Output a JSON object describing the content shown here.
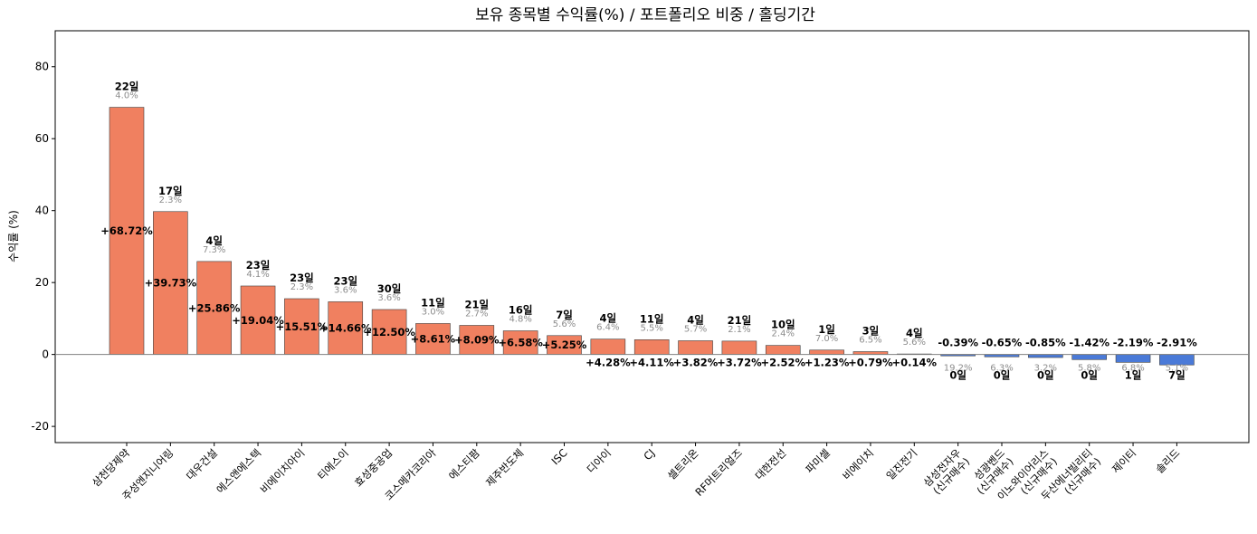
{
  "chart_data": {
    "type": "bar",
    "title": "보유 종목별 수익률(%) / 포트폴리오 비중 / 홀딩기간",
    "xlabel": "",
    "ylabel": "수익률 (%)",
    "ylim": [
      -24.5,
      90
    ],
    "yticks": [
      -20,
      0,
      20,
      40,
      60,
      80
    ],
    "ytick_labels": [
      "-20",
      "0",
      "20",
      "40",
      "60",
      "80"
    ],
    "grid": false,
    "zero_line": true,
    "colors": {
      "positive": "#f08060",
      "negative": "#4a7ad8",
      "edge": "#404040",
      "zero_line": "#808080",
      "weight_text": "#8c8c8c"
    },
    "categories": [
      [
        "삼천당제약"
      ],
      [
        "주성엔지니어링"
      ],
      [
        "대우건설"
      ],
      [
        "에스앤에스텍"
      ],
      [
        "비에이치아이"
      ],
      [
        "티에스이"
      ],
      [
        "효성중공업"
      ],
      [
        "코스메카코리아"
      ],
      [
        "에스티팜"
      ],
      [
        "제주반도체"
      ],
      [
        "ISC"
      ],
      [
        "디아이"
      ],
      [
        "CJ"
      ],
      [
        "셀트리온"
      ],
      [
        "RF머트리얼즈"
      ],
      [
        "대한전선"
      ],
      [
        "파미셀"
      ],
      [
        "비에이치"
      ],
      [
        "일진전기"
      ],
      [
        "삼성전자우",
        "(신규매수)"
      ],
      [
        "성광벤드",
        "(신규매수)"
      ],
      [
        "이노와이어리스",
        "(신규매수)"
      ],
      [
        "두산에너빌리티",
        "(신규매수)"
      ],
      [
        "제이티"
      ],
      [
        "솔리드"
      ]
    ],
    "values": [
      68.72,
      39.73,
      25.86,
      19.04,
      15.51,
      14.66,
      12.5,
      8.61,
      8.09,
      6.58,
      5.25,
      4.28,
      4.11,
      3.82,
      3.72,
      2.52,
      1.23,
      0.79,
      0.14,
      -0.39,
      -0.65,
      -0.85,
      -1.42,
      -2.19,
      -2.91
    ],
    "value_labels": [
      "+68.72%",
      "+39.73%",
      "+25.86%",
      "+19.04%",
      "+15.51%",
      "+14.66%",
      "+12.50%",
      "+8.61%",
      "+8.09%",
      "+6.58%",
      "+5.25%",
      "+4.28%",
      "+4.11%",
      "+3.82%",
      "+3.72%",
      "+2.52%",
      "+1.23%",
      "+0.79%",
      "+0.14%",
      "-0.39%",
      "-0.65%",
      "-0.85%",
      "-1.42%",
      "-2.19%",
      "-2.91%"
    ],
    "holding_days": [
      "22일",
      "17일",
      "4일",
      "23일",
      "23일",
      "23일",
      "30일",
      "11일",
      "21일",
      "16일",
      "7일",
      "4일",
      "11일",
      "4일",
      "21일",
      "10일",
      "1일",
      "3일",
      "4일",
      "0일",
      "0일",
      "0일",
      "0일",
      "1일",
      "7일"
    ],
    "weights": [
      "4.0%",
      "2.3%",
      "7.3%",
      "4.1%",
      "2.3%",
      "3.6%",
      "3.6%",
      "3.0%",
      "2.7%",
      "4.8%",
      "5.6%",
      "6.4%",
      "5.5%",
      "5.7%",
      "2.1%",
      "2.4%",
      "7.0%",
      "6.5%",
      "5.6%",
      "19.2%",
      "6.3%",
      "3.2%",
      "5.8%",
      "6.8%",
      "5.1%"
    ]
  }
}
